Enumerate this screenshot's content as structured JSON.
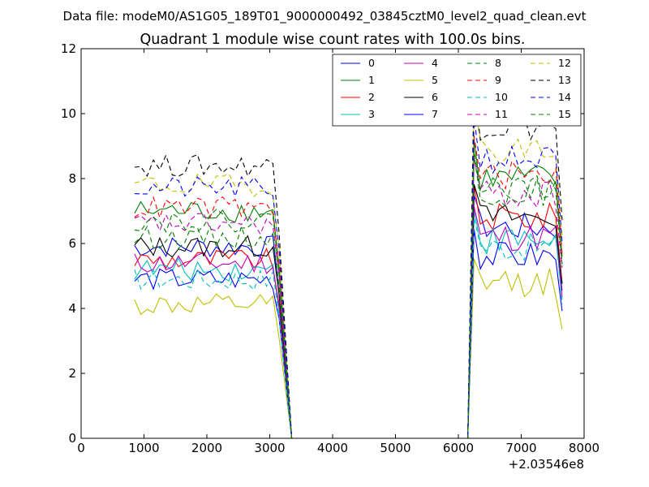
{
  "header": {
    "data_file": "Data file: modeM0/AS1G05_189T01_9000000492_03845cztM0_level2_quad_clean.evt"
  },
  "chart_data": {
    "type": "line",
    "title": "Quadrant 1 module wise count rates with 100.0s bins.",
    "xlabel": "",
    "ylabel": "",
    "xlim": [
      0,
      8000
    ],
    "ylim": [
      0,
      12
    ],
    "xticks": [
      0,
      1000,
      2000,
      3000,
      4000,
      5000,
      6000,
      7000,
      8000
    ],
    "yticks": [
      0,
      2,
      4,
      6,
      8,
      10,
      12
    ],
    "xtick_labels": [
      "0",
      "1000",
      "2000",
      "3000",
      "4000",
      "5000",
      "6000",
      "7000",
      "8000"
    ],
    "ytick_labels": [
      "0",
      "2",
      "4",
      "6",
      "8",
      "10",
      "12"
    ],
    "x_offset_label": "+2.03546e8",
    "grid": false,
    "legend_position": "top-right",
    "legend_columns": 4,
    "seg1": {
      "x_start": 850,
      "x_step": 100,
      "count": 24
    },
    "gap": {
      "x_start": 3350,
      "x_end": 6150
    },
    "seg2": {
      "x_start": 6250,
      "x_step": 100,
      "count": 15
    },
    "series": [
      {
        "name": "0",
        "color": "#0000ff",
        "dash": false,
        "level1": 5.9,
        "level2": 6.5
      },
      {
        "name": "1",
        "color": "#008000",
        "dash": false,
        "level1": 7.0,
        "level2": 8.0
      },
      {
        "name": "2",
        "color": "#ff0000",
        "dash": false,
        "level1": 5.5,
        "level2": 6.8
      },
      {
        "name": "3",
        "color": "#00bfbf",
        "dash": false,
        "level1": 5.2,
        "level2": 6.1
      },
      {
        "name": "4",
        "color": "#bf00bf",
        "dash": false,
        "level1": 5.4,
        "level2": 6.2
      },
      {
        "name": "5",
        "color": "#bfbf00",
        "dash": false,
        "level1": 4.1,
        "level2": 4.8
      },
      {
        "name": "6",
        "color": "#000000",
        "dash": false,
        "level1": 5.9,
        "level2": 6.8
      },
      {
        "name": "7",
        "color": "#0000ff",
        "dash": false,
        "level1": 4.9,
        "level2": 5.6
      },
      {
        "name": "8",
        "color": "#008000",
        "dash": true,
        "level1": 6.2,
        "level2": 7.6
      },
      {
        "name": "9",
        "color": "#ff0000",
        "dash": true,
        "level1": 7.1,
        "level2": 8.1
      },
      {
        "name": "10",
        "color": "#00bfbf",
        "dash": true,
        "level1": 4.9,
        "level2": 5.9
      },
      {
        "name": "11",
        "color": "#bf00bf",
        "dash": true,
        "level1": 6.6,
        "level2": 7.5
      },
      {
        "name": "12",
        "color": "#bfbf00",
        "dash": true,
        "level1": 7.8,
        "level2": 8.9
      },
      {
        "name": "13",
        "color": "#000000",
        "dash": true,
        "level1": 8.4,
        "level2": 9.6
      },
      {
        "name": "14",
        "color": "#0000ff",
        "dash": true,
        "level1": 7.7,
        "level2": 8.6
      },
      {
        "name": "15",
        "color": "#008000",
        "dash": true,
        "level1": 6.7,
        "level2": 7.7
      }
    ]
  }
}
